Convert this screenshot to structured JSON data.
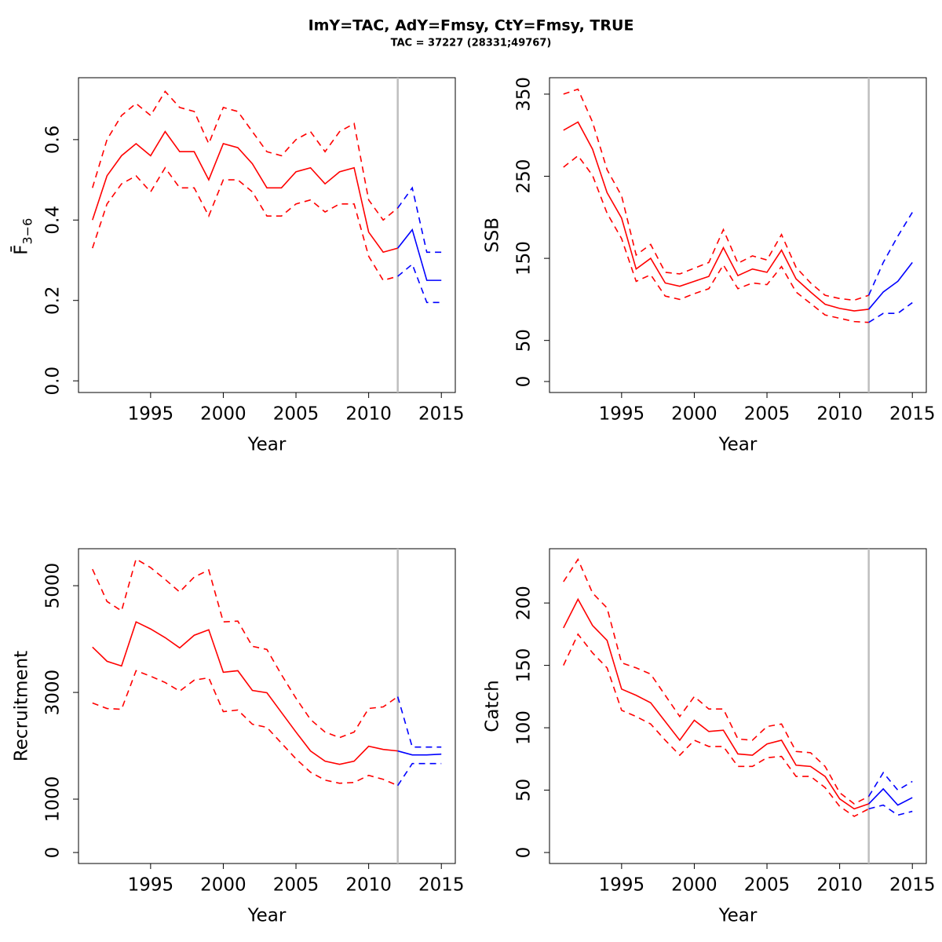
{
  "title": "ImY=TAC, AdY=Fmsy, CtY=Fmsy, TRUE",
  "subtitle": "TAC = 37227 (28331;49767)",
  "chart_data": [
    {
      "type": "line",
      "ylabel": "F̄",
      "ylabel_sub": "3−6",
      "xlabel": "Year",
      "x": [
        1991,
        1992,
        1993,
        1994,
        1995,
        1996,
        1997,
        1998,
        1999,
        2000,
        2001,
        2002,
        2003,
        2004,
        2005,
        2006,
        2007,
        2008,
        2009,
        2010,
        2011,
        2012,
        2013,
        2014,
        2015
      ],
      "xlim": [
        1990.04,
        2015.96
      ],
      "xticks": [
        1995,
        2000,
        2005,
        2010,
        2015
      ],
      "ylim": [
        -0.029,
        0.754
      ],
      "yticks": [
        {
          "value": 0,
          "label": "0.0"
        },
        0.2,
        0.4,
        0.6
      ],
      "vline": 2012,
      "vline_color": "#bebebe",
      "series": [
        {
          "color": "#ff0000",
          "dash": false,
          "values": [
            0.4,
            0.51,
            0.56,
            0.59,
            0.56,
            0.62,
            0.57,
            0.57,
            0.5,
            0.59,
            0.58,
            0.54,
            0.48,
            0.48,
            0.52,
            0.53,
            0.49,
            0.52,
            0.53,
            0.37,
            0.32,
            0.33,
            null,
            null,
            null
          ]
        },
        {
          "color": "#ff0000",
          "dash": true,
          "values": [
            0.48,
            0.6,
            0.66,
            0.69,
            0.66,
            0.72,
            0.68,
            0.67,
            0.59,
            0.68,
            0.67,
            0.62,
            0.57,
            0.56,
            0.6,
            0.62,
            0.57,
            0.62,
            0.64,
            0.45,
            0.4,
            0.43,
            null,
            null,
            null
          ]
        },
        {
          "color": "#ff0000",
          "dash": true,
          "values": [
            0.33,
            0.44,
            0.49,
            0.51,
            0.47,
            0.53,
            0.48,
            0.48,
            0.41,
            0.5,
            0.5,
            0.47,
            0.41,
            0.41,
            0.44,
            0.45,
            0.42,
            0.44,
            0.44,
            0.31,
            0.25,
            0.26,
            null,
            null,
            null
          ]
        },
        {
          "color": "#0000ff",
          "dash": false,
          "values": [
            null,
            null,
            null,
            null,
            null,
            null,
            null,
            null,
            null,
            null,
            null,
            null,
            null,
            null,
            null,
            null,
            null,
            null,
            null,
            null,
            null,
            0.33,
            0.376,
            0.25,
            0.25
          ]
        },
        {
          "color": "#0000ff",
          "dash": true,
          "values": [
            null,
            null,
            null,
            null,
            null,
            null,
            null,
            null,
            null,
            null,
            null,
            null,
            null,
            null,
            null,
            null,
            null,
            null,
            null,
            null,
            null,
            0.43,
            0.48,
            0.32,
            0.32
          ]
        },
        {
          "color": "#0000ff",
          "dash": true,
          "values": [
            null,
            null,
            null,
            null,
            null,
            null,
            null,
            null,
            null,
            null,
            null,
            null,
            null,
            null,
            null,
            null,
            null,
            null,
            null,
            null,
            null,
            0.26,
            0.29,
            0.195,
            0.195
          ]
        }
      ]
    },
    {
      "type": "line",
      "ylabel": "SSB",
      "xlabel": "Year",
      "x": [
        1991,
        1992,
        1993,
        1994,
        1995,
        1996,
        1997,
        1998,
        1999,
        2000,
        2001,
        2002,
        2003,
        2004,
        2005,
        2006,
        2007,
        2008,
        2009,
        2010,
        2011,
        2012,
        2013,
        2014,
        2015
      ],
      "xlim": [
        1990.04,
        2015.96
      ],
      "xticks": [
        1995,
        2000,
        2005,
        2010,
        2015
      ],
      "ylim": [
        -13.4,
        370
      ],
      "yticks": [
        0,
        50,
        150,
        250,
        350
      ],
      "vline": 2012,
      "vline_color": "#bebebe",
      "series": [
        {
          "color": "#ff0000",
          "dash": false,
          "values": [
            306,
            316,
            283,
            230,
            199,
            137,
            150,
            120,
            116,
            122,
            128,
            163,
            129,
            137,
            133,
            160,
            125,
            109,
            94,
            89,
            86,
            88,
            null,
            null,
            null
          ]
        },
        {
          "color": "#ff0000",
          "dash": true,
          "values": [
            350,
            356,
            316,
            258,
            226,
            154,
            167,
            133,
            131,
            138,
            145,
            185,
            144,
            153,
            148,
            179,
            139,
            120,
            105,
            101,
            99,
            105,
            null,
            null,
            null
          ]
        },
        {
          "color": "#ff0000",
          "dash": true,
          "values": [
            261,
            275,
            251,
            205,
            174,
            122,
            130,
            104,
            100,
            107,
            113,
            142,
            113,
            120,
            118,
            140,
            109,
            95,
            81,
            77,
            73,
            72,
            null,
            null,
            null
          ]
        },
        {
          "color": "#0000ff",
          "dash": false,
          "values": [
            null,
            null,
            null,
            null,
            null,
            null,
            null,
            null,
            null,
            null,
            null,
            null,
            null,
            null,
            null,
            null,
            null,
            null,
            null,
            null,
            null,
            88,
            109,
            122,
            145
          ]
        },
        {
          "color": "#0000ff",
          "dash": true,
          "values": [
            null,
            null,
            null,
            null,
            null,
            null,
            null,
            null,
            null,
            null,
            null,
            null,
            null,
            null,
            null,
            null,
            null,
            null,
            null,
            null,
            null,
            105,
            145,
            177,
            206
          ]
        },
        {
          "color": "#0000ff",
          "dash": true,
          "values": [
            null,
            null,
            null,
            null,
            null,
            null,
            null,
            null,
            null,
            null,
            null,
            null,
            null,
            null,
            null,
            null,
            null,
            null,
            null,
            null,
            null,
            72,
            83,
            83,
            96
          ]
        }
      ]
    },
    {
      "type": "line",
      "ylabel": "Recruitment",
      "xlabel": "Year",
      "x": [
        1991,
        1992,
        1993,
        1994,
        1995,
        1996,
        1997,
        1998,
        1999,
        2000,
        2001,
        2002,
        2003,
        2004,
        2005,
        2006,
        2007,
        2008,
        2009,
        2010,
        2011,
        2012,
        2013,
        2014,
        2015
      ],
      "xlim": [
        1990.04,
        2015.96
      ],
      "xticks": [
        1995,
        2000,
        2005,
        2010,
        2015
      ],
      "ylim": [
        -206,
        5693
      ],
      "yticks": [
        0,
        1000,
        3000,
        5000
      ],
      "vline": 2012,
      "vline_color": "#bebebe",
      "series": [
        {
          "color": "#ff0000",
          "dash": false,
          "values": [
            3850,
            3584,
            3496,
            4322,
            4189,
            4027,
            3835,
            4071,
            4174,
            3378,
            3407,
            3038,
            2994,
            2625,
            2257,
            1903,
            1711,
            1652,
            1711,
            1991,
            1932,
            1903,
            null,
            null,
            null
          ]
        },
        {
          "color": "#ff0000",
          "dash": true,
          "values": [
            5310,
            4705,
            4528,
            5501,
            5339,
            5118,
            4882,
            5162,
            5295,
            4322,
            4336,
            3864,
            3805,
            3333,
            2891,
            2493,
            2257,
            2153,
            2257,
            2699,
            2729,
            2920,
            null,
            null,
            null
          ]
        },
        {
          "color": "#ff0000",
          "dash": true,
          "values": [
            2802,
            2699,
            2684,
            3407,
            3304,
            3186,
            3024,
            3230,
            3274,
            2640,
            2670,
            2404,
            2345,
            2050,
            1755,
            1504,
            1357,
            1298,
            1313,
            1445,
            1372,
            1254,
            null,
            null,
            null
          ]
        },
        {
          "color": "#0000ff",
          "dash": false,
          "values": [
            null,
            null,
            null,
            null,
            null,
            null,
            null,
            null,
            null,
            null,
            null,
            null,
            null,
            null,
            null,
            null,
            null,
            null,
            null,
            null,
            null,
            1903,
            1829,
            1829,
            1844
          ]
        },
        {
          "color": "#0000ff",
          "dash": true,
          "values": [
            null,
            null,
            null,
            null,
            null,
            null,
            null,
            null,
            null,
            null,
            null,
            null,
            null,
            null,
            null,
            null,
            null,
            null,
            null,
            null,
            null,
            2920,
            1976,
            1976,
            1976
          ]
        },
        {
          "color": "#0000ff",
          "dash": true,
          "values": [
            null,
            null,
            null,
            null,
            null,
            null,
            null,
            null,
            null,
            null,
            null,
            null,
            null,
            null,
            null,
            null,
            null,
            null,
            null,
            null,
            null,
            1254,
            1667,
            1667,
            1667
          ]
        }
      ]
    },
    {
      "type": "line",
      "ylabel": "Catch",
      "xlabel": "Year",
      "x": [
        1991,
        1992,
        1993,
        1994,
        1995,
        1996,
        1997,
        1998,
        1999,
        2000,
        2001,
        2002,
        2003,
        2004,
        2005,
        2006,
        2007,
        2008,
        2009,
        2010,
        2011,
        2012,
        2013,
        2014,
        2015
      ],
      "xlim": [
        1990.04,
        2015.96
      ],
      "xticks": [
        1995,
        2000,
        2005,
        2010,
        2015
      ],
      "ylim": [
        -8.8,
        243.5
      ],
      "yticks": [
        0,
        50,
        100,
        150,
        200
      ],
      "vline": 2012,
      "vline_color": "#bebebe",
      "series": [
        {
          "color": "#ff0000",
          "dash": false,
          "values": [
            180,
            203,
            182,
            170,
            131,
            126,
            120,
            105,
            90,
            106,
            97,
            98,
            79,
            78,
            87,
            90,
            70,
            69,
            61,
            43,
            35,
            39,
            null,
            null,
            null
          ]
        },
        {
          "color": "#ff0000",
          "dash": true,
          "values": [
            217,
            235,
            208,
            196,
            152,
            148,
            143,
            126,
            109,
            125,
            115,
            115,
            91,
            90,
            101,
            103,
            81,
            80,
            69,
            48,
            39,
            45,
            null,
            null,
            null
          ]
        },
        {
          "color": "#ff0000",
          "dash": true,
          "values": [
            150,
            175,
            160,
            148,
            114,
            109,
            103,
            90,
            78,
            90,
            85,
            85,
            69,
            69,
            76,
            77,
            61,
            61,
            52,
            37,
            29,
            35,
            null,
            null,
            null
          ]
        },
        {
          "color": "#0000ff",
          "dash": false,
          "values": [
            null,
            null,
            null,
            null,
            null,
            null,
            null,
            null,
            null,
            null,
            null,
            null,
            null,
            null,
            null,
            null,
            null,
            null,
            null,
            null,
            null,
            39,
            51,
            38,
            44
          ]
        },
        {
          "color": "#0000ff",
          "dash": true,
          "values": [
            null,
            null,
            null,
            null,
            null,
            null,
            null,
            null,
            null,
            null,
            null,
            null,
            null,
            null,
            null,
            null,
            null,
            null,
            null,
            null,
            null,
            45,
            64,
            50,
            57
          ]
        },
        {
          "color": "#0000ff",
          "dash": true,
          "values": [
            null,
            null,
            null,
            null,
            null,
            null,
            null,
            null,
            null,
            null,
            null,
            null,
            null,
            null,
            null,
            null,
            null,
            null,
            null,
            null,
            null,
            35,
            38,
            30,
            33
          ]
        }
      ]
    }
  ]
}
